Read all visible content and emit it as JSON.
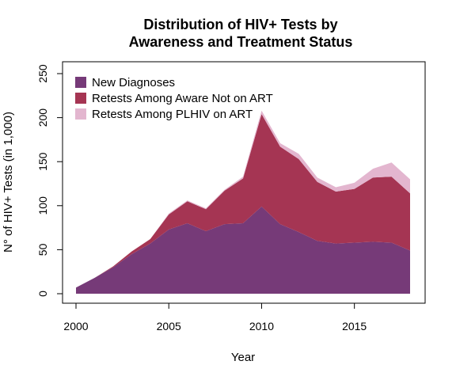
{
  "chart_data": {
    "type": "area",
    "stacked": true,
    "title_line1": "Distribution of HIV+ Tests by",
    "title_line2": "Awareness and Treatment Status",
    "xlabel": "Year",
    "ylabel": "N° of HIV+ Tests (in 1,000)",
    "xlim": [
      2000,
      2018
    ],
    "ylim": [
      0,
      250
    ],
    "x_ticks": [
      2000,
      2005,
      2010,
      2015
    ],
    "y_ticks": [
      0,
      50,
      100,
      150,
      200,
      250
    ],
    "legend_position": "top-left",
    "grid": false,
    "x": [
      2000,
      2001,
      2002,
      2003,
      2004,
      2005,
      2006,
      2007,
      2008,
      2009,
      2010,
      2011,
      2012,
      2013,
      2014,
      2015,
      2016,
      2017,
      2018
    ],
    "series": [
      {
        "name": "New Diagnoses",
        "color": "#763A78",
        "values": [
          7,
          18,
          30,
          45,
          57,
          73,
          80,
          71,
          79,
          80,
          99,
          79,
          70,
          60,
          57,
          58,
          59,
          58,
          49
        ]
      },
      {
        "name": "Retests Among Aware Not on ART",
        "color": "#A53553",
        "values": [
          0,
          0,
          1,
          3,
          5,
          17,
          25,
          25,
          38,
          51,
          105,
          88,
          83,
          67,
          59,
          61,
          73,
          75,
          65
        ]
      },
      {
        "name": "Retests Among PLHIV on ART",
        "color": "#E3B6CF",
        "values": [
          0,
          0,
          0,
          0,
          0,
          1,
          1,
          1,
          1,
          2,
          4,
          4,
          6,
          5,
          5,
          7,
          10,
          16,
          16
        ]
      }
    ]
  }
}
